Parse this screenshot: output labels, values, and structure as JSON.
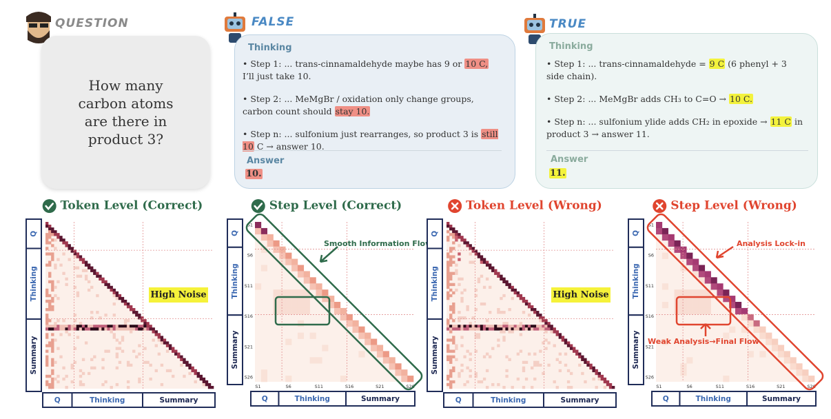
{
  "question": {
    "label": "QUESTION",
    "text": "How many carbon atoms are there in product 3?"
  },
  "responses": [
    {
      "label": "FALSE",
      "thinking_title": "Thinking",
      "highlight_color": "#ef8f85",
      "steps": [
        [
          {
            "text": "• Step 1: ... trans-cinnamaldehyde maybe has 9 or "
          },
          {
            "text": "10 C,",
            "highlight": true
          },
          {
            "text": " I’ll just take 10."
          }
        ],
        [
          {
            "text": "• Step 2: ... MeMgBr / oxidation only change groups, carbon count should "
          },
          {
            "text": "stay 10.",
            "highlight": true
          }
        ],
        [
          {
            "text": "• Step n: ... sulfonium just rearranges, so product 3 is "
          },
          {
            "text": "still 10",
            "highlight": true
          },
          {
            "text": " C → answer 10."
          }
        ]
      ],
      "answer_title": "Answer",
      "answer": "10."
    },
    {
      "label": "TRUE",
      "thinking_title": "Thinking",
      "highlight_color": "#f3f23c",
      "steps": [
        [
          {
            "text": "• Step 1: ... trans-cinnamaldehyde = "
          },
          {
            "text": "9 C",
            "highlight": true
          },
          {
            "text": " (6 phenyl + 3 side chain)."
          }
        ],
        [
          {
            "text": "• Step 2: ... MeMgBr adds CH₃ to C=O → "
          },
          {
            "text": "10 C.",
            "highlight": true
          }
        ],
        [
          {
            "text": "• Step n: ... sulfonium ylide adds CH₂ in epoxide → "
          },
          {
            "text": "11 C",
            "highlight": true
          },
          {
            "text": " in product 3 → answer 11."
          }
        ]
      ],
      "answer_title": "Answer",
      "answer": "11."
    }
  ],
  "panels": [
    {
      "title": "Token Level (Correct)",
      "level": "token",
      "status": "correct",
      "color": "#2f6b4b",
      "y_sections": [
        "Q",
        "Thinking",
        "Summary"
      ],
      "x_sections": [
        "Q",
        "Thinking",
        "Summary"
      ],
      "annotations": [
        "High Noise"
      ]
    },
    {
      "title": "Step Level (Correct)",
      "level": "step",
      "status": "correct",
      "color": "#2f6b4b",
      "y_sections": [
        "Q",
        "Thinking",
        "Summary"
      ],
      "x_sections": [
        "Q",
        "Thinking",
        "Summary"
      ],
      "ticks": [
        "S1",
        "S6",
        "S11",
        "S16",
        "S21",
        "S26"
      ],
      "annotations": [
        "Smooth Information Flow"
      ]
    },
    {
      "title": "Token Level (Wrong)",
      "level": "token",
      "status": "wrong",
      "color": "#e0452f",
      "y_sections": [
        "Q",
        "Thinking",
        "Summary"
      ],
      "x_sections": [
        "Q",
        "Thinking",
        "Summary"
      ],
      "annotations": [
        "High Noise"
      ]
    },
    {
      "title": "Step Level (Wrong)",
      "level": "step",
      "status": "wrong",
      "color": "#e0452f",
      "y_sections": [
        "Q",
        "Thinking",
        "Summary"
      ],
      "x_sections": [
        "Q",
        "Thinking",
        "Summary"
      ],
      "ticks": [
        "S1",
        "S6",
        "S11",
        "S16",
        "S21",
        "S26"
      ],
      "annotations": [
        "Analysis Lock-in",
        "Weak Analysis→Final Flow"
      ]
    }
  ]
}
